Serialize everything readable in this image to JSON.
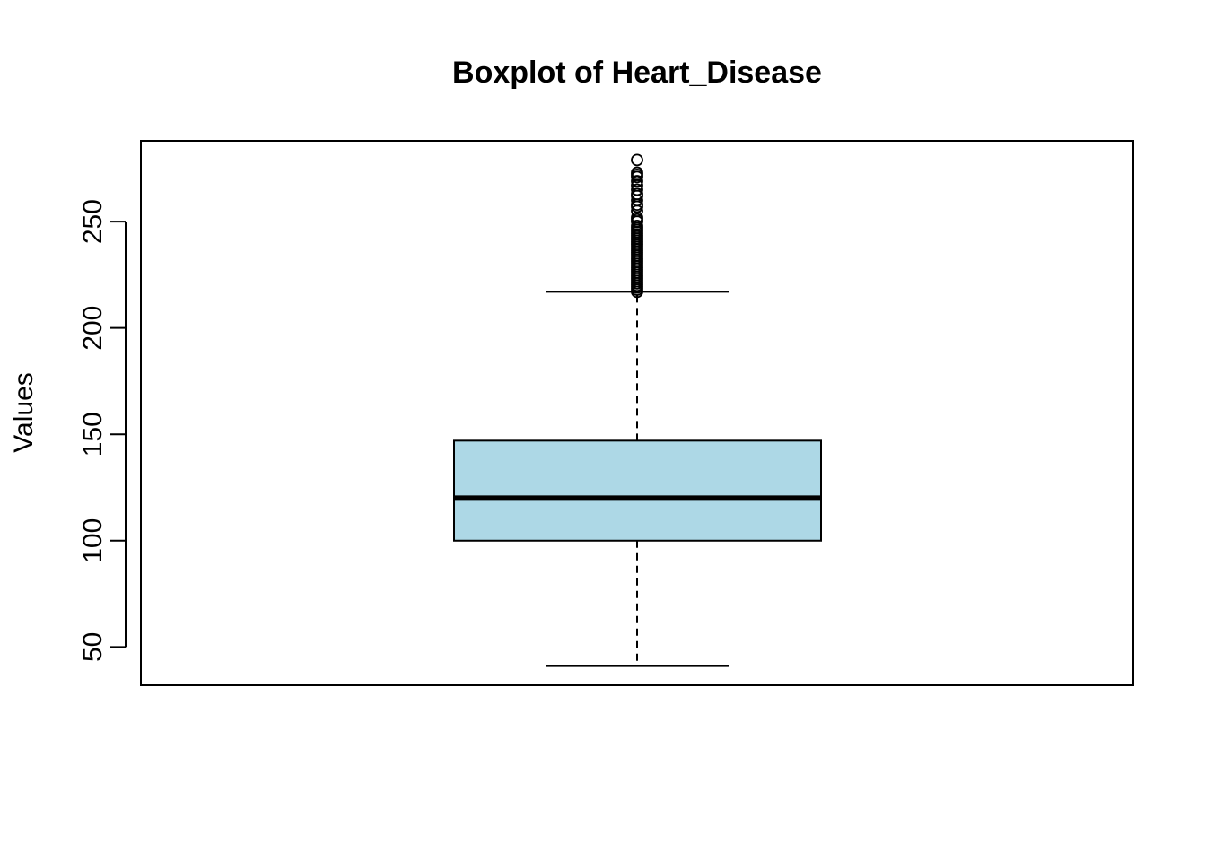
{
  "chart_data": {
    "type": "boxplot",
    "title": "Boxplot of Heart_Disease",
    "xlabel": "",
    "ylabel": "Values",
    "ylim": [
      32,
      288
    ],
    "yticks": [
      50,
      100,
      150,
      200,
      250
    ],
    "grid": false,
    "box": {
      "lower_whisker": 41,
      "q1": 100,
      "median": 120,
      "q3": 147,
      "upper_whisker": 217,
      "outliers": [
        217,
        218,
        219,
        220,
        221,
        222,
        223,
        224,
        225,
        226,
        227,
        228,
        229,
        230,
        231,
        232,
        233,
        234,
        235,
        236,
        237,
        238,
        239,
        240,
        241,
        242,
        243,
        244,
        245,
        246,
        247,
        248,
        250,
        251,
        252,
        255,
        257,
        258,
        260,
        262,
        263,
        265,
        267,
        269,
        271,
        272,
        273,
        279
      ]
    },
    "colors": {
      "box_fill": "#add8e6",
      "stroke": "#000000"
    }
  }
}
